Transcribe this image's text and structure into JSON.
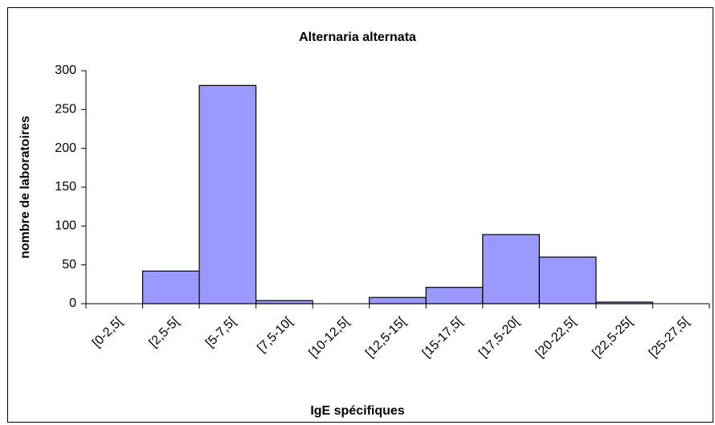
{
  "chart_data": {
    "type": "bar",
    "title": "Alternaria alternata",
    "x_label": "IgE spécifiques",
    "y_label": "nombre de laboratoires",
    "categories": [
      "[0-2,5[",
      "[2,5-5[",
      "[5-7,5[",
      "[7,5-10[",
      "[10-12,5[",
      "[12,5-15[",
      "[15-17,5[",
      "[17,5-20[",
      "[20-22,5[",
      "[22,5-25[",
      "[25-27,5["
    ],
    "values": [
      0,
      42,
      281,
      4,
      0,
      8,
      21,
      89,
      60,
      2,
      0
    ],
    "color": "#9999ff",
    "ylim": [
      0,
      300
    ],
    "yticks": [
      0,
      50,
      100,
      150,
      200,
      250,
      300
    ],
    "grid": false
  }
}
